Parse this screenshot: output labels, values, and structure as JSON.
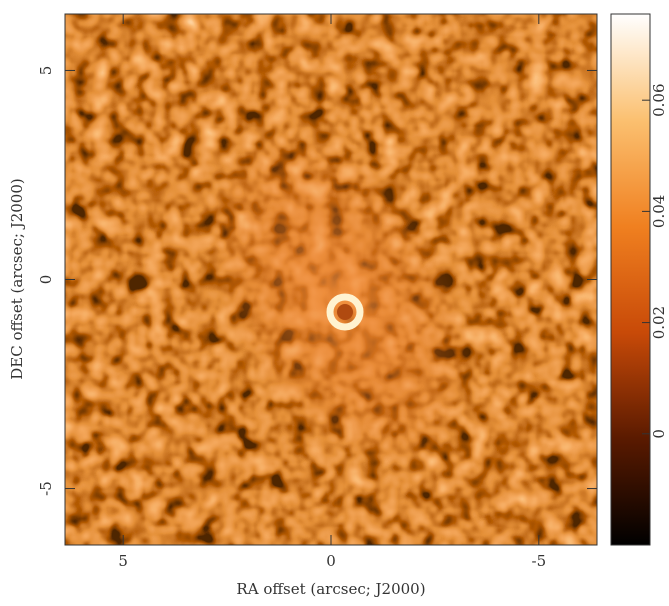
{
  "chart_data": {
    "type": "image",
    "xlabel": "RA offset (arcsec; J2000)",
    "ylabel": "DEC offset (arcsec; J2000)",
    "xlim": [
      6.4,
      -6.4
    ],
    "xticks": [
      5,
      0,
      -5
    ],
    "ylim": [
      -6.35,
      6.35
    ],
    "yticks": [
      -5,
      0,
      5
    ],
    "colorbar": {
      "lim": [
        -0.02,
        0.0755
      ],
      "ticks": [
        0,
        0.02,
        0.04,
        0.06
      ]
    }
  }
}
